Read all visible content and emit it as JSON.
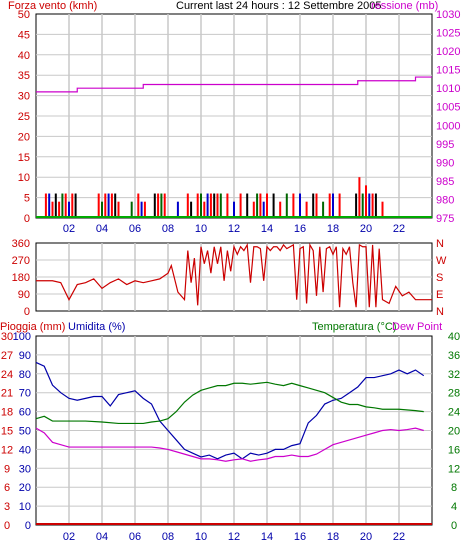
{
  "header": {
    "wind_label": "Forza vento (kmh)",
    "title": "Current last 24 hours : 12 Settembre 2005",
    "pressure_label": "ressione (mb)"
  },
  "bottom_header": {
    "rain_label": "Pioggia (mm)",
    "humidity_label": "Umidita (%)",
    "temperature_label": "Temperatura (°C)",
    "dewpoint_label": "Dew Point"
  },
  "colors": {
    "wind": "#ff0000",
    "wind_alt1": "#0000cc",
    "wind_alt2": "#006600",
    "wind_alt3": "#000000",
    "pressure": "#cc00cc",
    "direction": "#cc0000",
    "humidity": "#0000aa",
    "temperature": "#007700",
    "dewpoint": "#cc00cc",
    "rain": "#cc0000",
    "label_red": "#cc0000",
    "label_blue": "#0000aa",
    "label_green": "#007700",
    "label_magenta": "#cc00cc",
    "grid": "#c8c8c8",
    "axis_zero": "#00aa00"
  },
  "chart_data": [
    {
      "id": "wind",
      "type": "bar",
      "ylabel": "Forza vento (kmh)",
      "x_ticks": [
        "02",
        "04",
        "06",
        "08",
        "10",
        "12",
        "14",
        "16",
        "18",
        "20",
        "22"
      ],
      "y_ticks": [
        0,
        5,
        10,
        15,
        20,
        25,
        30,
        35,
        40,
        45,
        50
      ],
      "ylim": [
        0,
        50
      ],
      "xlim": [
        0,
        24
      ],
      "x": [
        0.6,
        0.8,
        1.0,
        1.2,
        1.4,
        1.6,
        1.8,
        2.0,
        2.2,
        2.4,
        3.8,
        4.0,
        4.2,
        4.4,
        4.6,
        4.8,
        5.0,
        5.8,
        6.2,
        6.4,
        6.6,
        7.2,
        7.4,
        7.6,
        7.8,
        8.6,
        9.2,
        9.4,
        9.8,
        10.0,
        10.2,
        10.4,
        10.6,
        10.8,
        11.0,
        11.2,
        11.6,
        12.0,
        12.4,
        12.8,
        13.2,
        13.4,
        13.6,
        13.8,
        14.0,
        14.4,
        14.8,
        15.2,
        15.6,
        16.0,
        16.4,
        16.8,
        17.0,
        17.4,
        17.8,
        18.0,
        18.4,
        19.4,
        19.6,
        19.8,
        20.0,
        20.2,
        20.4,
        20.6,
        21.0
      ],
      "values": [
        6,
        6,
        4,
        6,
        4,
        6,
        6,
        4,
        6,
        6,
        6,
        4,
        6,
        6,
        6,
        6,
        4,
        4,
        6,
        4,
        4,
        6,
        6,
        6,
        6,
        4,
        6,
        4,
        6,
        6,
        4,
        6,
        6,
        6,
        6,
        6,
        6,
        4,
        6,
        6,
        4,
        6,
        6,
        4,
        6,
        6,
        4,
        6,
        6,
        6,
        4,
        6,
        6,
        4,
        6,
        6,
        6,
        6,
        10,
        6,
        8,
        6,
        6,
        6,
        4
      ]
    },
    {
      "id": "pressure",
      "type": "line",
      "ylabel": "ressione (mb)",
      "y_ticks": [
        975,
        980,
        985,
        990,
        995,
        1000,
        1005,
        1010,
        1015,
        1020,
        1025,
        1030
      ],
      "ylim": [
        975,
        1030
      ],
      "x": [
        0,
        2,
        2.5,
        6,
        6.5,
        9,
        9.5,
        13,
        13.5,
        19,
        19.5,
        22.5,
        23,
        24
      ],
      "values": [
        1009,
        1009,
        1010,
        1010,
        1011,
        1011,
        1011,
        1011,
        1011,
        1011,
        1012,
        1012,
        1013,
        1013
      ]
    },
    {
      "id": "direction",
      "type": "line",
      "ylabel": "",
      "category_ticks": [
        "N",
        "W",
        "S",
        "E",
        "N"
      ],
      "y_ticks": [
        0,
        90,
        180,
        270,
        360
      ],
      "ylim": [
        0,
        360
      ],
      "x": [
        0,
        1,
        1.5,
        2.0,
        2.5,
        3.0,
        3.5,
        4.0,
        4.5,
        5.0,
        5.5,
        6.0,
        6.5,
        7.0,
        7.5,
        8.0,
        8.2,
        8.6,
        9.0,
        9.2,
        9.4,
        9.6,
        9.8,
        10.0,
        10.2,
        10.4,
        10.6,
        10.8,
        11.0,
        11.2,
        11.4,
        11.6,
        11.8,
        12.0,
        12.2,
        12.4,
        12.6,
        12.8,
        13.0,
        13.2,
        13.4,
        13.6,
        13.8,
        14.0,
        14.2,
        14.4,
        14.6,
        14.8,
        15.0,
        15.2,
        15.4,
        15.6,
        15.8,
        16.0,
        16.2,
        16.4,
        16.6,
        16.8,
        17.0,
        17.2,
        17.4,
        17.6,
        17.8,
        18.0,
        18.2,
        18.4,
        18.6,
        18.8,
        19.0,
        19.2,
        19.4,
        19.6,
        19.8,
        20.0,
        20.2,
        20.4,
        20.6,
        20.8,
        21.0,
        21.4,
        21.8,
        22.2,
        22.6,
        23.0,
        23.5,
        24
      ],
      "values": [
        160,
        160,
        150,
        60,
        140,
        150,
        170,
        120,
        150,
        170,
        140,
        160,
        150,
        160,
        170,
        200,
        240,
        100,
        60,
        320,
        150,
        280,
        30,
        340,
        250,
        320,
        200,
        340,
        250,
        340,
        160,
        320,
        210,
        340,
        300,
        340,
        320,
        350,
        150,
        340,
        340,
        330,
        160,
        340,
        320,
        340,
        340,
        320,
        350,
        330,
        340,
        350,
        60,
        330,
        340,
        40,
        350,
        320,
        80,
        340,
        100,
        330,
        340,
        300,
        340,
        20,
        330,
        300,
        340,
        150,
        20,
        350,
        340,
        340,
        20,
        350,
        20,
        330,
        60,
        40,
        130,
        80,
        100,
        60,
        60,
        60
      ]
    },
    {
      "id": "humidity",
      "type": "line",
      "ylabel": "Umidita (%)",
      "y_ticks": [
        0,
        10,
        20,
        30,
        40,
        50,
        60,
        70,
        80,
        90,
        100
      ],
      "ylim": [
        0,
        100
      ],
      "x": [
        0,
        0.5,
        1,
        1.5,
        2,
        2.5,
        3,
        3.5,
        4,
        4.5,
        5,
        5.5,
        6,
        6.5,
        7,
        7.5,
        8,
        8.5,
        9,
        9.5,
        10,
        10.5,
        11,
        11.5,
        12,
        12.5,
        13,
        13.5,
        14,
        14.5,
        15,
        15.5,
        16,
        16.5,
        17,
        17.5,
        18,
        18.5,
        19,
        19.5,
        20,
        20.5,
        21,
        21.5,
        22,
        22.5,
        23,
        23.5
      ],
      "values": [
        86,
        84,
        74,
        70,
        67,
        66,
        67,
        68,
        68,
        63,
        69,
        70,
        71,
        67,
        64,
        55,
        50,
        45,
        40,
        38,
        36,
        37,
        35,
        37,
        38,
        35,
        38,
        37,
        38,
        40,
        40,
        42,
        43,
        54,
        58,
        64,
        66,
        67,
        70,
        73,
        78,
        78,
        79,
        80,
        82,
        80,
        82,
        79
      ]
    },
    {
      "id": "temperature",
      "type": "line",
      "ylabel": "Temperatura (°C)",
      "y_ticks": [
        0,
        4,
        8,
        12,
        16,
        20,
        24,
        28,
        32,
        36,
        40
      ],
      "ylim": [
        0,
        40
      ],
      "x": [
        0,
        0.5,
        1,
        2,
        3,
        4,
        5,
        6,
        6.5,
        7,
        7.5,
        8,
        8.5,
        9,
        9.5,
        10,
        10.5,
        11,
        11.5,
        12,
        12.5,
        13,
        13.5,
        14,
        14.5,
        15,
        15.5,
        16,
        16.5,
        17,
        17.5,
        18,
        18.5,
        19,
        19.5,
        20,
        20.5,
        21,
        22,
        23,
        23.5
      ],
      "values": [
        22.5,
        23,
        22,
        22,
        22,
        21.8,
        21.5,
        21.5,
        21.5,
        21.8,
        22,
        22.5,
        24,
        26,
        27.5,
        28.5,
        29,
        29.5,
        29.5,
        30,
        30,
        29.8,
        30,
        30.2,
        29.8,
        29.5,
        30,
        29.5,
        29,
        28.5,
        28,
        27,
        26,
        25.5,
        25.5,
        25,
        24.8,
        24.5,
        24.5,
        24.2,
        24
      ]
    },
    {
      "id": "dewpoint",
      "type": "line",
      "ylabel": "Dew Point",
      "x": [
        0,
        0.5,
        1,
        1.5,
        2,
        3,
        4,
        5,
        6,
        6.5,
        7,
        7.5,
        8,
        8.5,
        9,
        9.5,
        10,
        10.5,
        11,
        11.5,
        12,
        12.5,
        13,
        13.5,
        14,
        14.5,
        15,
        15.5,
        16,
        16.5,
        17,
        17.5,
        18,
        18.5,
        19,
        19.5,
        20,
        20.5,
        21,
        21.5,
        22,
        22.5,
        23,
        23.5
      ],
      "values": [
        20.5,
        19.5,
        17.5,
        17,
        16.5,
        16.5,
        16.5,
        16.5,
        16.5,
        16.5,
        16.5,
        16.3,
        16,
        15.5,
        15,
        14.5,
        14,
        14,
        13.8,
        13.5,
        13.8,
        14,
        13.5,
        13.8,
        14,
        14.5,
        14.5,
        14.8,
        14.5,
        14.5,
        15,
        16,
        17,
        17.5,
        18,
        18.5,
        19,
        19.5,
        20,
        20.2,
        20,
        20.2,
        20.5,
        20
      ]
    },
    {
      "id": "rain",
      "type": "line",
      "ylabel": "Pioggia (mm)",
      "y_ticks": [
        0,
        3,
        6,
        9,
        12,
        15,
        18,
        21,
        24,
        27,
        30
      ],
      "ylim": [
        0,
        30
      ],
      "x": [
        0,
        24
      ],
      "values": [
        0,
        0
      ]
    }
  ]
}
